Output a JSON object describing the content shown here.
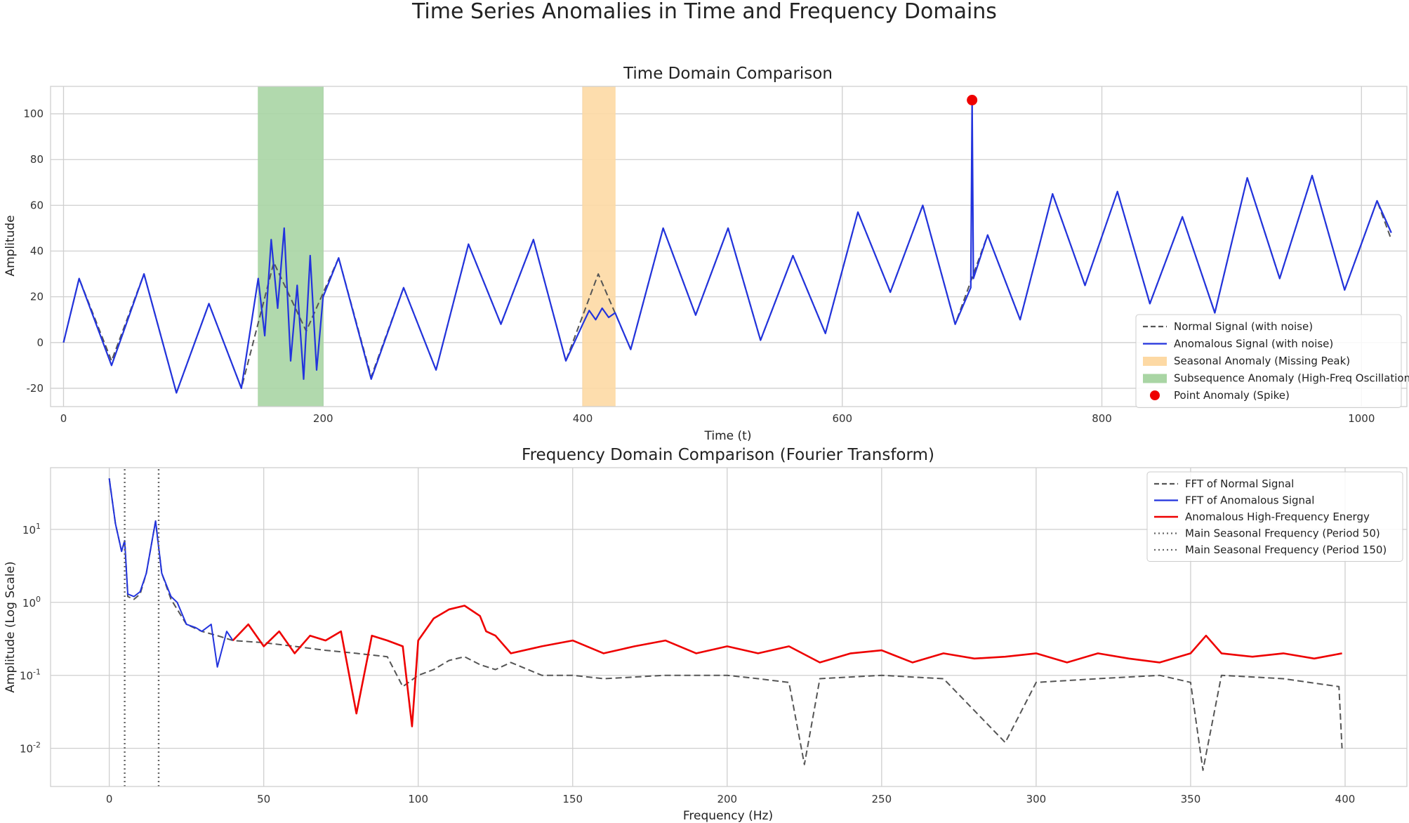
{
  "figure": {
    "title": "Time Series Anomalies in Time and Frequency Domains"
  },
  "colors": {
    "normal": "#555555",
    "anomalous": "#2233dd",
    "high_freq": "#ee0000",
    "seasonal_band": "#fdd9a4",
    "subsequence_band": "#a9d5a4",
    "point": "#ee0000",
    "seasonal_marker": "#666666"
  },
  "chart_data": [
    {
      "type": "line",
      "title": "Time Domain Comparison",
      "xlabel": "Time (t)",
      "ylabel": "Amplitude",
      "xlim": [
        -10,
        1035
      ],
      "ylim": [
        -28,
        112
      ],
      "xticks": [
        0,
        200,
        400,
        600,
        800,
        1000
      ],
      "yticks": [
        -20,
        0,
        20,
        40,
        60,
        80,
        100
      ],
      "grid": true,
      "legend_position": "lower right",
      "series": [
        {
          "name": "Normal Signal (with noise)",
          "style": "dashed",
          "color": "#555555",
          "x": [
            0,
            12,
            37,
            62,
            87,
            112,
            137,
            162,
            187,
            212,
            237,
            262,
            287,
            312,
            337,
            362,
            387,
            412,
            437,
            462,
            487,
            512,
            537,
            562,
            587,
            612,
            637,
            662,
            687,
            712,
            737,
            762,
            787,
            812,
            837,
            862,
            887,
            912,
            937,
            962,
            987,
            1012,
            1023
          ],
          "y": [
            0,
            28,
            -8,
            30,
            -22,
            17,
            -20,
            35,
            5,
            37,
            -15,
            24,
            -12,
            43,
            8,
            45,
            -8,
            30,
            -3,
            50,
            12,
            50,
            1,
            38,
            4,
            57,
            22,
            60,
            8,
            47,
            10,
            65,
            25,
            66,
            17,
            55,
            13,
            72,
            28,
            73,
            23,
            62,
            45
          ]
        },
        {
          "name": "Anomalous Signal (with noise)",
          "style": "solid",
          "color": "#2233dd",
          "x": [
            0,
            12,
            37,
            62,
            87,
            112,
            137,
            150,
            155,
            160,
            165,
            170,
            175,
            180,
            185,
            190,
            195,
            200,
            212,
            237,
            262,
            287,
            312,
            337,
            362,
            387,
            400,
            405,
            410,
            415,
            420,
            425,
            437,
            462,
            487,
            512,
            537,
            562,
            587,
            612,
            637,
            662,
            687,
            699,
            700,
            701,
            712,
            737,
            762,
            787,
            812,
            837,
            862,
            887,
            912,
            937,
            962,
            987,
            1012,
            1023
          ],
          "y": [
            0,
            28,
            -10,
            30,
            -22,
            17,
            -20,
            28,
            3,
            45,
            15,
            50,
            -8,
            25,
            -16,
            38,
            -12,
            20,
            37,
            -16,
            24,
            -12,
            43,
            8,
            45,
            -8,
            8,
            14,
            10,
            15,
            11,
            13,
            -3,
            50,
            12,
            50,
            1,
            38,
            4,
            57,
            22,
            60,
            8,
            24,
            106,
            28,
            47,
            10,
            65,
            25,
            66,
            17,
            55,
            13,
            72,
            28,
            73,
            23,
            62,
            48
          ]
        },
        {
          "name": "Point Anomaly (Spike)",
          "style": "marker",
          "color": "#ee0000",
          "x": [
            700
          ],
          "y": [
            106
          ]
        }
      ],
      "bands": [
        {
          "name": "Seasonal Anomaly (Missing Peak)",
          "color": "#fdd9a4",
          "x0": 400,
          "x1": 425
        },
        {
          "name": "Subsequence Anomaly (High-Freq Oscillation)",
          "color": "#a9d5a4",
          "x0": 150,
          "x1": 200
        }
      ]
    },
    {
      "type": "line",
      "title": "Frequency Domain Comparison (Fourier Transform)",
      "xlabel": "Frequency (Hz)",
      "ylabel": "Amplitude (Log Scale)",
      "xlim": [
        -19,
        420
      ],
      "ylim": [
        0.003,
        70
      ],
      "yscale": "log",
      "xticks": [
        0,
        50,
        100,
        150,
        200,
        250,
        300,
        350,
        400
      ],
      "yticks": [
        0.01,
        0.1,
        1,
        10
      ],
      "ytick_labels": [
        "10^-2",
        "10^-1",
        "10^0",
        "10^1"
      ],
      "grid": true,
      "legend_position": "upper right",
      "series": [
        {
          "name": "FFT of Normal Signal",
          "style": "dashed",
          "color": "#555555",
          "x": [
            0,
            2,
            4,
            5,
            6,
            8,
            10,
            12,
            15,
            17,
            20,
            25,
            30,
            35,
            40,
            50,
            60,
            70,
            80,
            90,
            95,
            100,
            105,
            110,
            115,
            120,
            125,
            130,
            140,
            150,
            160,
            180,
            200,
            210,
            220,
            225,
            230,
            250,
            270,
            290,
            300,
            320,
            340,
            350,
            354,
            360,
            380,
            398,
            399
          ],
          "y": [
            50,
            12,
            5,
            7,
            1.2,
            1.1,
            1.3,
            2.5,
            13,
            2.5,
            1.1,
            0.5,
            0.4,
            0.35,
            0.3,
            0.28,
            0.25,
            0.22,
            0.2,
            0.18,
            0.07,
            0.1,
            0.12,
            0.16,
            0.18,
            0.14,
            0.12,
            0.15,
            0.1,
            0.1,
            0.09,
            0.1,
            0.1,
            0.09,
            0.08,
            0.006,
            0.09,
            0.1,
            0.09,
            0.012,
            0.08,
            0.09,
            0.1,
            0.08,
            0.005,
            0.1,
            0.09,
            0.07,
            0.01
          ]
        },
        {
          "name": "FFT of Anomalous Signal",
          "style": "solid",
          "color": "#2233dd",
          "x": [
            0,
            2,
            4,
            5,
            6,
            8,
            10,
            12,
            15,
            17,
            20,
            22,
            25,
            28,
            30,
            33,
            35,
            38,
            40
          ],
          "y": [
            50,
            12,
            5,
            7,
            1.3,
            1.2,
            1.4,
            2.5,
            13,
            2.5,
            1.2,
            1.0,
            0.5,
            0.45,
            0.4,
            0.5,
            0.13,
            0.4,
            0.3
          ]
        },
        {
          "name": "Anomalous High-Frequency Energy",
          "style": "solid",
          "color": "#ee0000",
          "x": [
            40,
            45,
            50,
            55,
            60,
            65,
            70,
            75,
            80,
            85,
            90,
            95,
            98,
            100,
            105,
            110,
            115,
            120,
            122,
            125,
            130,
            140,
            150,
            160,
            170,
            180,
            190,
            200,
            210,
            220,
            230,
            240,
            250,
            260,
            270,
            280,
            290,
            300,
            310,
            320,
            330,
            340,
            350,
            355,
            360,
            370,
            380,
            390,
            399
          ],
          "y": [
            0.3,
            0.5,
            0.25,
            0.4,
            0.2,
            0.35,
            0.3,
            0.4,
            0.03,
            0.35,
            0.3,
            0.25,
            0.02,
            0.3,
            0.6,
            0.8,
            0.9,
            0.65,
            0.4,
            0.35,
            0.2,
            0.25,
            0.3,
            0.2,
            0.25,
            0.3,
            0.2,
            0.25,
            0.2,
            0.25,
            0.15,
            0.2,
            0.22,
            0.15,
            0.2,
            0.17,
            0.18,
            0.2,
            0.15,
            0.2,
            0.17,
            0.15,
            0.2,
            0.35,
            0.2,
            0.18,
            0.2,
            0.17,
            0.2
          ]
        },
        {
          "name": "Main Seasonal Frequency (Period 50)",
          "style": "dotted",
          "color": "#666666",
          "x": [
            5,
            5
          ],
          "y": [
            0.003,
            70
          ]
        },
        {
          "name": "Main Seasonal Frequency (Period 150)",
          "style": "dotted",
          "color": "#666666",
          "x": [
            16,
            16
          ],
          "y": [
            0.003,
            70
          ]
        }
      ]
    }
  ]
}
